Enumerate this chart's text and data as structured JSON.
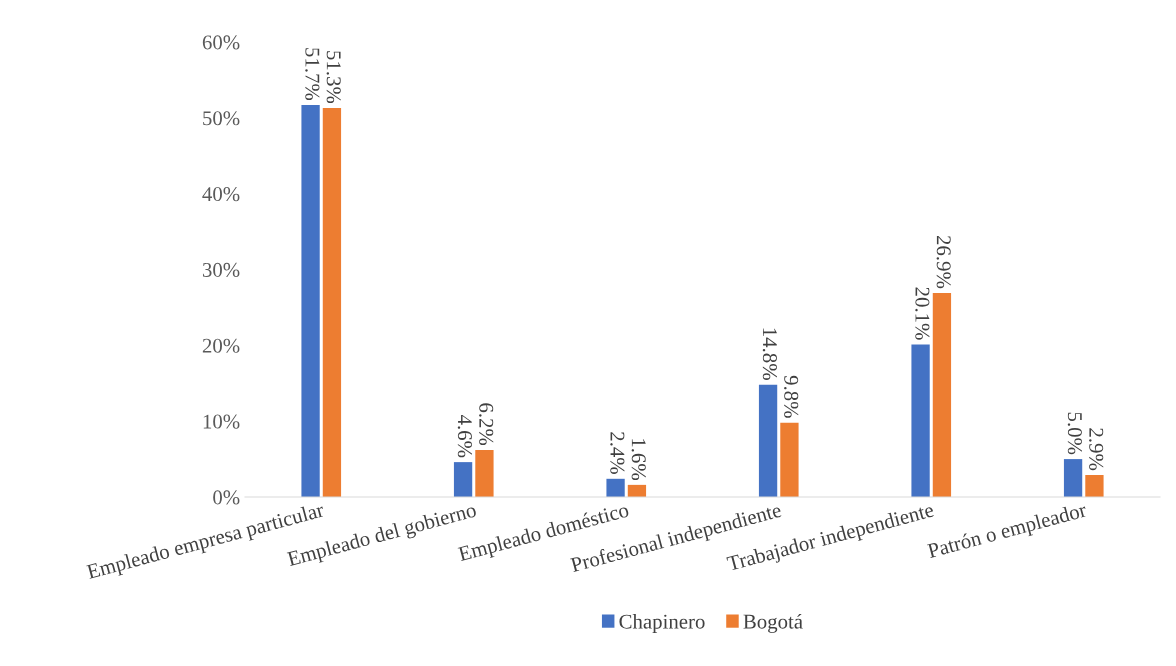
{
  "chart_data": {
    "type": "bar",
    "categories": [
      "Empleado empresa particular",
      "Empleado del gobierno",
      "Empleado doméstico",
      "Profesional independiente",
      "Trabajador independiente",
      "Patrón o empleador"
    ],
    "series": [
      {
        "name": "Chapinero",
        "color": "#4472c4",
        "values": [
          51.7,
          4.6,
          2.4,
          14.8,
          20.1,
          5.0
        ],
        "value_labels": [
          "51.7%",
          "4.6%",
          "2.4%",
          "14.8%",
          "20.1%",
          "5.0%"
        ]
      },
      {
        "name": "Bogotá",
        "color": "#ed7d31",
        "values": [
          51.3,
          6.2,
          1.6,
          9.8,
          26.9,
          2.9
        ],
        "value_labels": [
          "51.3%",
          "6.2%",
          "1.6%",
          "9.8%",
          "26.9%",
          "2.9%"
        ]
      }
    ],
    "ylim": [
      0,
      60
    ],
    "yticks": [
      {
        "value": 0,
        "label": "0%"
      },
      {
        "value": 10,
        "label": "10%"
      },
      {
        "value": 20,
        "label": "20%"
      },
      {
        "value": 30,
        "label": "30%"
      },
      {
        "value": 40,
        "label": "40%"
      },
      {
        "value": 50,
        "label": "50%"
      },
      {
        "value": 60,
        "label": "60%"
      }
    ],
    "grid": false,
    "legend": "bottom"
  }
}
